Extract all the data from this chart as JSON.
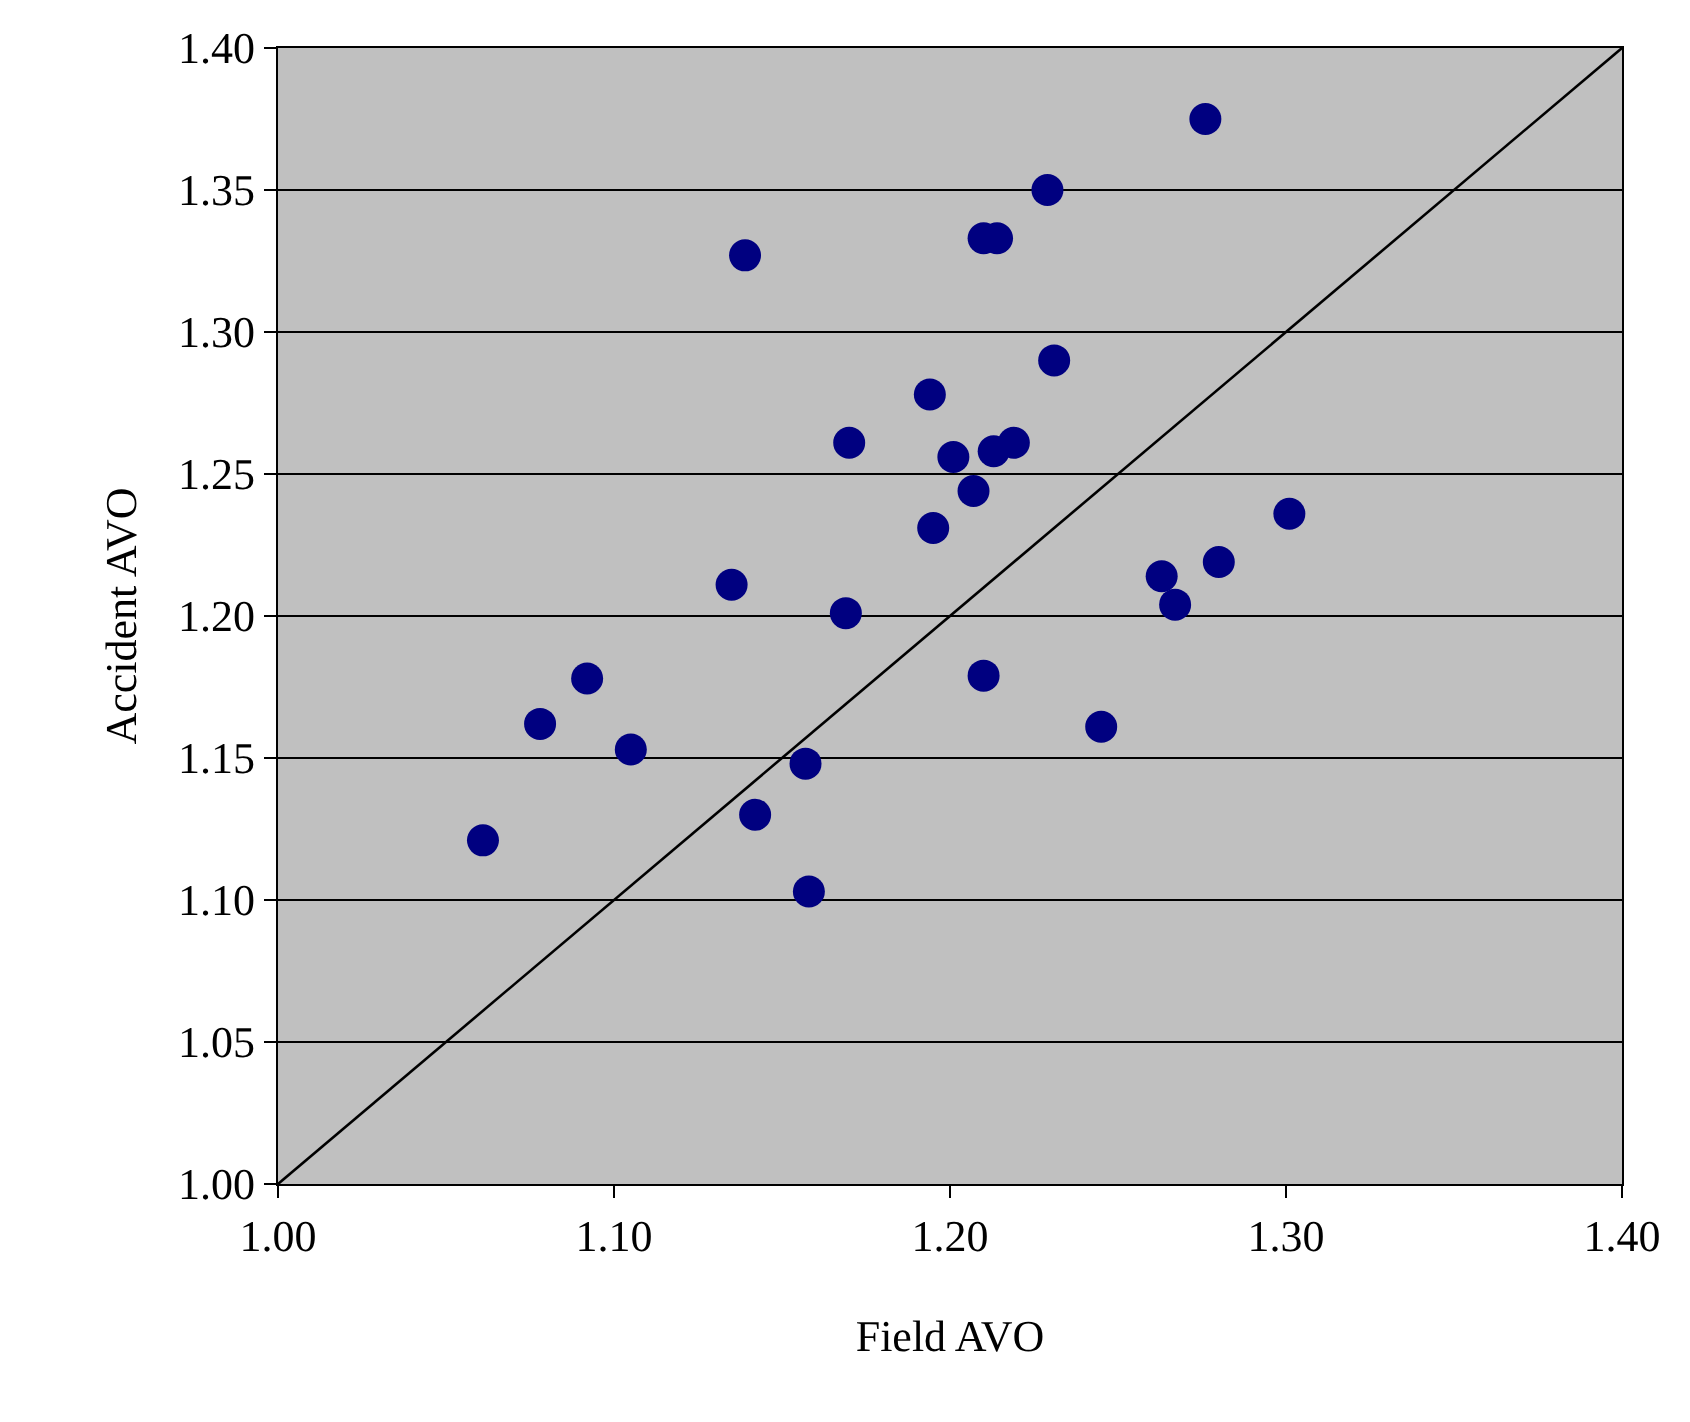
{
  "chart_data": {
    "type": "scatter",
    "xlabel": "Field AVO",
    "ylabel": "Accident AVO",
    "xlim": [
      1.0,
      1.4
    ],
    "xticks": [
      {
        "value": 1.0,
        "label": "1.00"
      },
      {
        "value": 1.1,
        "label": "1.10"
      },
      {
        "value": 1.2,
        "label": "1.20"
      },
      {
        "value": 1.3,
        "label": "1.30"
      },
      {
        "value": 1.4,
        "label": "1.40"
      }
    ],
    "ylim": [
      1.0,
      1.4
    ],
    "yticks": [
      {
        "value": 1.0,
        "label": "1.00"
      },
      {
        "value": 1.05,
        "label": "1.05"
      },
      {
        "value": 1.1,
        "label": "1.10"
      },
      {
        "value": 1.15,
        "label": "1.15"
      },
      {
        "value": 1.2,
        "label": "1.20"
      },
      {
        "value": 1.25,
        "label": "1.25"
      },
      {
        "value": 1.3,
        "label": "1.30"
      },
      {
        "value": 1.35,
        "label": "1.35"
      },
      {
        "value": 1.4,
        "label": "1.40"
      }
    ],
    "grid": "y",
    "series": [
      {
        "color": "#000080",
        "marker": "circle",
        "x": [
          1.061,
          1.078,
          1.092,
          1.105,
          1.135,
          1.139,
          1.142,
          1.157,
          1.158,
          1.169,
          1.17,
          1.194,
          1.195,
          1.201,
          1.207,
          1.21,
          1.21,
          1.214,
          1.213,
          1.219,
          1.229,
          1.231,
          1.245,
          1.263,
          1.267,
          1.276,
          1.28,
          1.301
        ],
        "values": [
          1.121,
          1.162,
          1.178,
          1.153,
          1.211,
          1.327,
          1.13,
          1.148,
          1.103,
          1.201,
          1.261,
          1.278,
          1.231,
          1.256,
          1.244,
          1.333,
          1.179,
          1.333,
          1.258,
          1.261,
          1.35,
          1.29,
          1.161,
          1.214,
          1.204,
          1.375,
          1.219,
          1.236
        ]
      },
      {
        "type": "line",
        "color": "#000000",
        "marker": "none",
        "line_style": "solid",
        "x": [
          1.0,
          1.4
        ],
        "values": [
          1.0,
          1.4
        ]
      }
    ]
  }
}
